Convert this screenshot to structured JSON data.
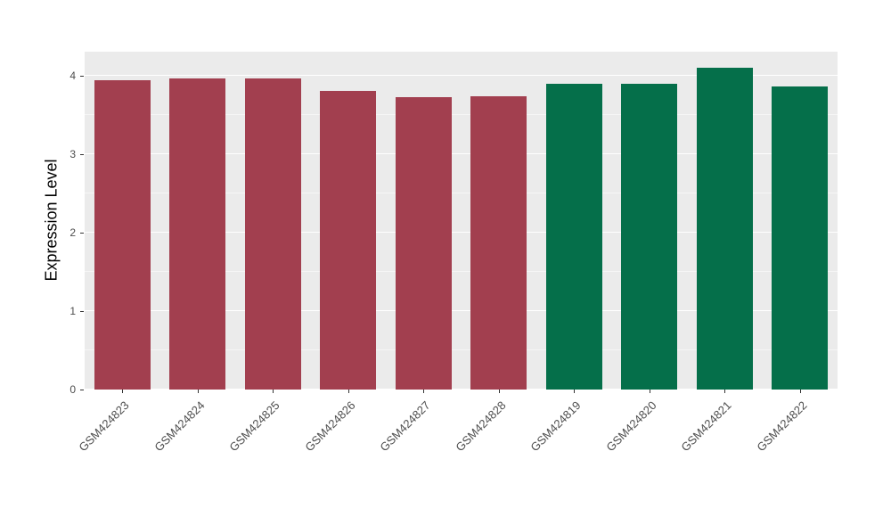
{
  "chart_data": {
    "type": "bar",
    "title": "",
    "xlabel": "",
    "ylabel": "Expression Level",
    "categories": [
      "GSM424823",
      "GSM424824",
      "GSM424825",
      "GSM424826",
      "GSM424827",
      "GSM424828",
      "GSM424819",
      "GSM424820",
      "GSM424821",
      "GSM424822"
    ],
    "values": [
      3.95,
      3.97,
      3.97,
      3.81,
      3.73,
      3.74,
      3.9,
      3.9,
      4.1,
      3.87
    ],
    "bar_colors": [
      "#A23F4F",
      "#A23F4F",
      "#A23F4F",
      "#A23F4F",
      "#A23F4F",
      "#A23F4F",
      "#056F4A",
      "#056F4A",
      "#056F4A",
      "#056F4A"
    ],
    "group_colors": {
      "group1": "#A23F4F",
      "group2": "#056F4A"
    },
    "ylim": [
      0,
      4.31
    ],
    "yticks": [
      0,
      1,
      2,
      3,
      4
    ],
    "yticks_minor": [
      0.5,
      1.5,
      2.5,
      3.5
    ],
    "grid": true,
    "legend": "none",
    "panel_bg": "#EBEBEB",
    "grid_color": "#FFFFFF",
    "tick_label_color": "#4D4D4D"
  }
}
